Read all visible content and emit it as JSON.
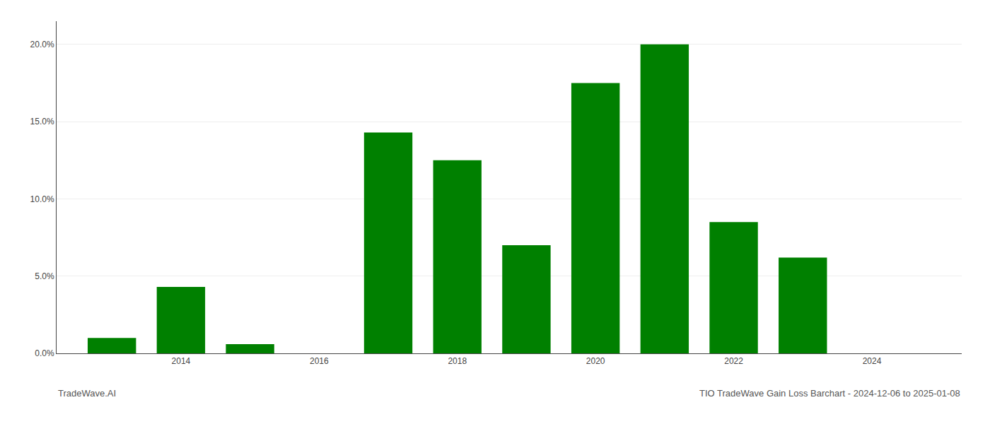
{
  "chart_data": {
    "type": "bar",
    "title": "TIO TradeWave Gain Loss Barchart - 2024-12-06 to 2025-01-08",
    "annotations": [
      {
        "text": "TradeWave.AI"
      }
    ],
    "x": [
      2013,
      2014,
      2015,
      2016,
      2017,
      2018,
      2019,
      2020,
      2021,
      2022,
      2023,
      2024
    ],
    "values": [
      0.01,
      0.043,
      0.006,
      0.0,
      0.143,
      0.125,
      0.07,
      0.175,
      0.2,
      0.085,
      0.062,
      0.0
    ],
    "color": "#008000",
    "xlim": [
      2012.2,
      2025.3
    ],
    "xticks": [
      2014,
      2016,
      2018,
      2020,
      2022,
      2024
    ],
    "ylim": [
      0,
      0.215
    ],
    "yticks": [
      {
        "value": 0.0,
        "label": "0.0%"
      },
      {
        "value": 0.05,
        "label": "5.0%"
      },
      {
        "value": 0.1,
        "label": "10.0%"
      },
      {
        "value": 0.15,
        "label": "15.0%"
      },
      {
        "value": 0.2,
        "label": "20.0%"
      }
    ],
    "grid": "y"
  }
}
